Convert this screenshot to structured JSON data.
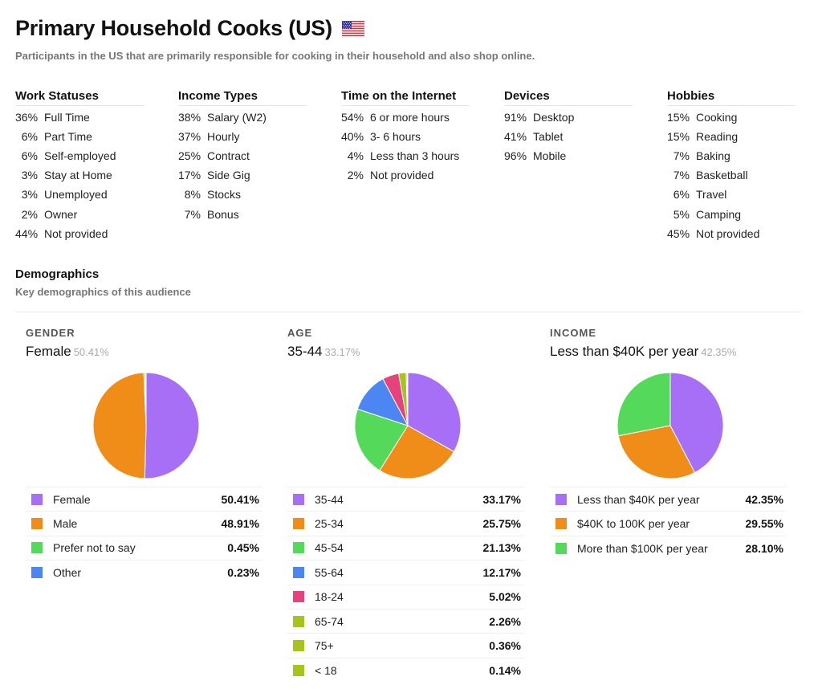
{
  "header": {
    "title": "Primary Household Cooks (US)",
    "subtitle": "Participants in the US that are primarily responsible for cooking in their household and also shop online."
  },
  "stats": [
    {
      "heading": "Work Statuses",
      "items": [
        {
          "pct": "36%",
          "label": "Full Time"
        },
        {
          "pct": "6%",
          "label": "Part Time"
        },
        {
          "pct": "6%",
          "label": "Self-employed"
        },
        {
          "pct": "3%",
          "label": "Stay at Home"
        },
        {
          "pct": "3%",
          "label": "Unemployed"
        },
        {
          "pct": "2%",
          "label": "Owner"
        },
        {
          "pct": "44%",
          "label": "Not provided"
        }
      ]
    },
    {
      "heading": "Income Types",
      "items": [
        {
          "pct": "38%",
          "label": "Salary (W2)"
        },
        {
          "pct": "37%",
          "label": "Hourly"
        },
        {
          "pct": "25%",
          "label": "Contract"
        },
        {
          "pct": "17%",
          "label": "Side Gig"
        },
        {
          "pct": "8%",
          "label": "Stocks"
        },
        {
          "pct": "7%",
          "label": "Bonus"
        }
      ]
    },
    {
      "heading": "Time on the Internet",
      "items": [
        {
          "pct": "54%",
          "label": "6 or more hours"
        },
        {
          "pct": "40%",
          "label": "3- 6 hours"
        },
        {
          "pct": "4%",
          "label": "Less than 3 hours"
        },
        {
          "pct": "2%",
          "label": "Not provided"
        }
      ]
    },
    {
      "heading": "Devices",
      "items": [
        {
          "pct": "91%",
          "label": "Desktop"
        },
        {
          "pct": "41%",
          "label": "Tablet"
        },
        {
          "pct": "96%",
          "label": "Mobile"
        }
      ]
    },
    {
      "heading": "Hobbies",
      "items": [
        {
          "pct": "15%",
          "label": "Cooking"
        },
        {
          "pct": "15%",
          "label": "Reading"
        },
        {
          "pct": "7%",
          "label": "Baking"
        },
        {
          "pct": "7%",
          "label": "Basketball"
        },
        {
          "pct": "6%",
          "label": "Travel"
        },
        {
          "pct": "5%",
          "label": "Camping"
        },
        {
          "pct": "45%",
          "label": "Not provided"
        }
      ]
    }
  ],
  "demographics": {
    "title": "Demographics",
    "subtitle": "Key demographics of this audience"
  },
  "chart_data": [
    {
      "type": "pie",
      "title": "GENDER",
      "lead_label": "Female",
      "lead_pct": "50.41%",
      "slices": [
        {
          "name": "Female",
          "value": 50.41,
          "label": "50.41%",
          "color": "#a66ff5"
        },
        {
          "name": "Male",
          "value": 48.91,
          "label": "48.91%",
          "color": "#f08c18"
        },
        {
          "name": "Prefer not to say",
          "value": 0.45,
          "label": "0.45%",
          "color": "#55d95b"
        },
        {
          "name": "Other",
          "value": 0.23,
          "label": "0.23%",
          "color": "#4b86f2"
        }
      ]
    },
    {
      "type": "pie",
      "title": "AGE",
      "lead_label": "35-44",
      "lead_pct": "33.17%",
      "slices": [
        {
          "name": "35-44",
          "value": 33.17,
          "label": "33.17%",
          "color": "#a66ff5"
        },
        {
          "name": "25-34",
          "value": 25.75,
          "label": "25.75%",
          "color": "#f08c18"
        },
        {
          "name": "45-54",
          "value": 21.13,
          "label": "21.13%",
          "color": "#55d95b"
        },
        {
          "name": "55-64",
          "value": 12.17,
          "label": "12.17%",
          "color": "#4b86f2"
        },
        {
          "name": "18-24",
          "value": 5.02,
          "label": "5.02%",
          "color": "#e6427d"
        },
        {
          "name": "65-74",
          "value": 2.26,
          "label": "2.26%",
          "color": "#a6c41d"
        },
        {
          "name": "75+",
          "value": 0.36,
          "label": "0.36%",
          "color": "#a6c41d"
        },
        {
          "name": "< 18",
          "value": 0.14,
          "label": "0.14%",
          "color": "#a6c41d"
        }
      ]
    },
    {
      "type": "pie",
      "title": "INCOME",
      "lead_label": "Less than $40K per year",
      "lead_pct": "42.35%",
      "slices": [
        {
          "name": "Less than $40K per year",
          "value": 42.35,
          "label": "42.35%",
          "color": "#a66ff5"
        },
        {
          "name": "$40K to 100K per year",
          "value": 29.55,
          "label": "29.55%",
          "color": "#f08c18"
        },
        {
          "name": "More than $100K per year",
          "value": 28.1,
          "label": "28.10%",
          "color": "#55d95b"
        }
      ]
    }
  ]
}
